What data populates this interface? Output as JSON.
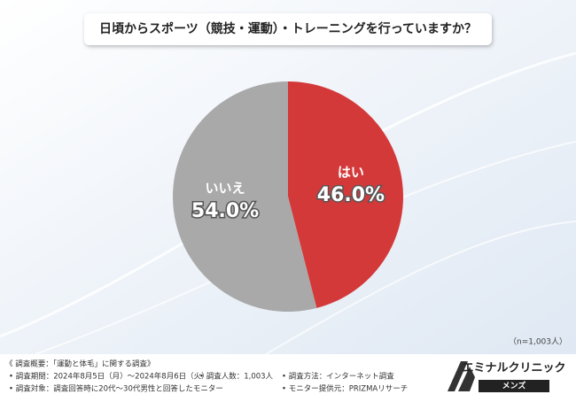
{
  "chart_data": {
    "type": "pie",
    "title": "日頃からスポーツ（競技・運動）・トレーニングを行っていますか？",
    "categories": [
      "はい",
      "いいえ"
    ],
    "values": [
      46.0,
      54.0
    ],
    "value_labels": [
      "46.0%",
      "54.0%"
    ],
    "colors": [
      "#d4393a",
      "#a9a9a9"
    ],
    "note": "（n=1,003人）"
  },
  "footer": {
    "heading": "《 調査概要：「運動と体毛」に関する調査》",
    "items": [
      "• 調査期間：2024年8月5日（月）～2024年8月6日（火）",
      "• 調査人数：1,003人",
      "• 調査方法：インターネット調査",
      "• 調査対象：調査回答時に20代～30代男性と回答したモニター",
      "• モニター提供元：PRIZMAリサーチ"
    ]
  },
  "logo": {
    "name": "エミナルクリニック",
    "sub": "メンズ"
  }
}
